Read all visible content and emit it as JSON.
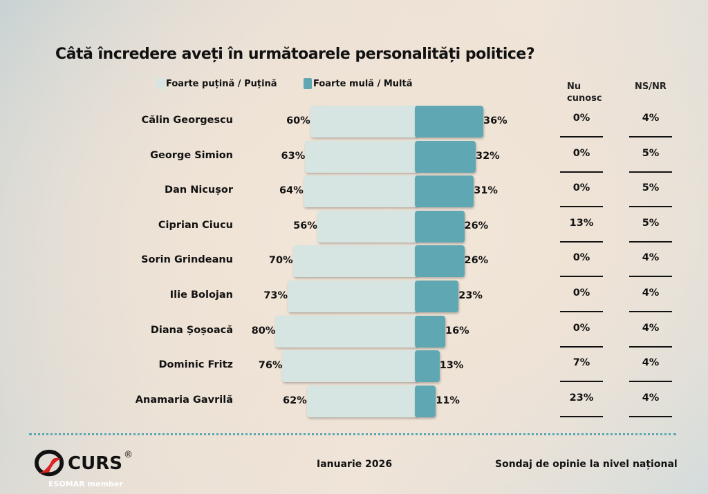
{
  "chart_data": {
    "type": "bar",
    "title": "Câtă încredere aveți în următoarele personalități politice?",
    "orientation": "horizontal-diverging",
    "categories": [
      "Călin Georgescu",
      "George Simion",
      "Dan Nicușor",
      "Ciprian Ciucu",
      "Sorin Grindeanu",
      "Ilie Bolojan",
      "Diana Șoșoacă",
      "Dominic Fritz",
      "Anamaria Gavrilă"
    ],
    "series": [
      {
        "name": "Foarte puțină / Puțină",
        "color": "#d6e5e2",
        "values": [
          60,
          63,
          64,
          56,
          70,
          73,
          80,
          76,
          62
        ]
      },
      {
        "name": "Foarte mulă / Multă",
        "color": "#5ea7b3",
        "values": [
          36,
          32,
          31,
          26,
          26,
          23,
          16,
          13,
          11
        ]
      }
    ],
    "table_columns": [
      {
        "header": "Nu cunosc",
        "values": [
          0,
          0,
          0,
          13,
          0,
          0,
          0,
          7,
          23
        ]
      },
      {
        "header": "NS/NR",
        "values": [
          4,
          5,
          5,
          5,
          4,
          4,
          4,
          4,
          4
        ]
      }
    ],
    "unit": "%",
    "legend": "top"
  },
  "footer": {
    "logo": "CURS",
    "logo_sub": "ESOMAR member",
    "date": "Ianuarie 2026",
    "caption": "Sondaj de opinie la nivel național"
  }
}
